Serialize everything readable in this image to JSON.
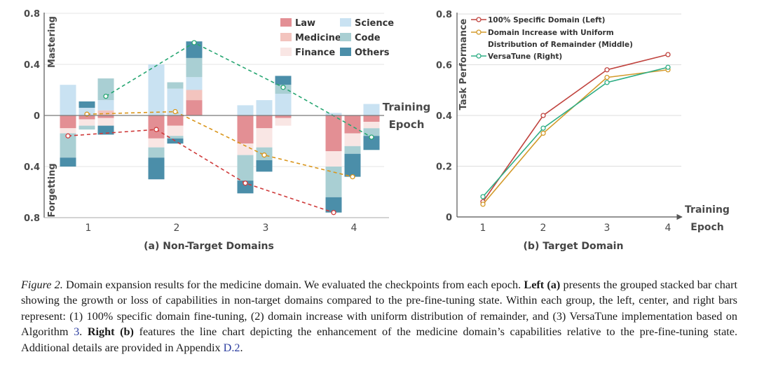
{
  "left_chart": {
    "y_ticks": [
      "0.8",
      "0.4",
      "0",
      "0.4",
      "0.8"
    ],
    "y_label_top": "Mastering",
    "y_label_bottom": "Forgetting",
    "x_axis_label_line1": "Training",
    "x_axis_label_line2": "Epoch",
    "subcaption": "(a) Non-Target Domains"
  },
  "right_chart": {
    "y_label": "Task Performance",
    "x_axis_label_line1": "Training",
    "x_axis_label_line2": "Epoch",
    "subcaption": "(b) Target Domain"
  },
  "chart_data": [
    {
      "type": "bar",
      "stacked": true,
      "grouped": true,
      "subcaption": "(a) Non-Target Domains",
      "categories": [
        "1",
        "2",
        "3",
        "4"
      ],
      "bars_per_group": 3,
      "ylim": [
        -0.8,
        0.8
      ],
      "y_tick_labels": [
        "0.8",
        "0.4",
        "0",
        "0.4",
        "0.8"
      ],
      "ylabel_positive": "Mastering",
      "ylabel_negative": "Forgetting",
      "xlabel": "Training Epoch",
      "legend": [
        {
          "name": "Law",
          "color": "#e38f94"
        },
        {
          "name": "Science",
          "color": "#c9e2f2"
        },
        {
          "name": "Medicine",
          "color": "#f3c4be"
        },
        {
          "name": "Code",
          "color": "#a9cfd3"
        },
        {
          "name": "Finance",
          "color": "#f9e6e4"
        },
        {
          "name": "Others",
          "color": "#4b8ea9"
        }
      ],
      "legend_position": "top-right",
      "bars": [
        {
          "epoch": "1",
          "slot": 0,
          "segments": [
            {
              "domain": "Science",
              "value": 0.24
            },
            {
              "domain": "Law",
              "value": -0.1
            },
            {
              "domain": "Finance",
              "value": -0.04
            },
            {
              "domain": "Code",
              "value": -0.19
            },
            {
              "domain": "Others",
              "value": -0.07
            }
          ]
        },
        {
          "epoch": "1",
          "slot": 1,
          "segments": [
            {
              "domain": "Science",
              "value": 0.06
            },
            {
              "domain": "Others",
              "value": 0.05
            },
            {
              "domain": "Law",
              "value": -0.03
            },
            {
              "domain": "Finance",
              "value": -0.05
            },
            {
              "domain": "Code",
              "value": -0.03
            }
          ]
        },
        {
          "epoch": "1",
          "slot": 2,
          "segments": [
            {
              "domain": "Medicine",
              "value": 0.04
            },
            {
              "domain": "Science",
              "value": 0.08
            },
            {
              "domain": "Code",
              "value": 0.17
            },
            {
              "domain": "Law",
              "value": -0.02
            },
            {
              "domain": "Finance",
              "value": -0.06
            },
            {
              "domain": "Others",
              "value": -0.07
            }
          ]
        },
        {
          "epoch": "2",
          "slot": 0,
          "segments": [
            {
              "domain": "Science",
              "value": 0.4
            },
            {
              "domain": "Law",
              "value": -0.18
            },
            {
              "domain": "Finance",
              "value": -0.07
            },
            {
              "domain": "Code",
              "value": -0.08
            },
            {
              "domain": "Others",
              "value": -0.17
            }
          ]
        },
        {
          "epoch": "2",
          "slot": 1,
          "segments": [
            {
              "domain": "Science",
              "value": 0.21
            },
            {
              "domain": "Code",
              "value": 0.05
            },
            {
              "domain": "Law",
              "value": -0.08
            },
            {
              "domain": "Finance",
              "value": -0.08
            },
            {
              "domain": "Code",
              "value": -0.02
            },
            {
              "domain": "Others",
              "value": -0.04
            }
          ]
        },
        {
          "epoch": "2",
          "slot": 2,
          "segments": [
            {
              "domain": "Law",
              "value": 0.12
            },
            {
              "domain": "Medicine",
              "value": 0.08
            },
            {
              "domain": "Science",
              "value": 0.1
            },
            {
              "domain": "Code",
              "value": 0.15
            },
            {
              "domain": "Others",
              "value": 0.13
            }
          ]
        },
        {
          "epoch": "3",
          "slot": 0,
          "segments": [
            {
              "domain": "Science",
              "value": 0.08
            },
            {
              "domain": "Law",
              "value": -0.22
            },
            {
              "domain": "Finance",
              "value": -0.09
            },
            {
              "domain": "Code",
              "value": -0.2
            },
            {
              "domain": "Others",
              "value": -0.1
            }
          ]
        },
        {
          "epoch": "3",
          "slot": 1,
          "segments": [
            {
              "domain": "Science",
              "value": 0.12
            },
            {
              "domain": "Law",
              "value": -0.1
            },
            {
              "domain": "Finance",
              "value": -0.15
            },
            {
              "domain": "Code",
              "value": -0.1
            },
            {
              "domain": "Others",
              "value": -0.09
            }
          ]
        },
        {
          "epoch": "3",
          "slot": 2,
          "segments": [
            {
              "domain": "Science",
              "value": 0.17
            },
            {
              "domain": "Code",
              "value": 0.07
            },
            {
              "domain": "Others",
              "value": 0.07
            },
            {
              "domain": "Law",
              "value": -0.02
            },
            {
              "domain": "Finance",
              "value": -0.06
            }
          ]
        },
        {
          "epoch": "4",
          "slot": 0,
          "segments": [
            {
              "domain": "Science",
              "value": 0.02
            },
            {
              "domain": "Law",
              "value": -0.28
            },
            {
              "domain": "Finance",
              "value": -0.12
            },
            {
              "domain": "Code",
              "value": -0.24
            },
            {
              "domain": "Others",
              "value": -0.12
            }
          ]
        },
        {
          "epoch": "4",
          "slot": 1,
          "segments": [
            {
              "domain": "Law",
              "value": -0.14
            },
            {
              "domain": "Finance",
              "value": -0.1
            },
            {
              "domain": "Code",
              "value": -0.06
            },
            {
              "domain": "Others",
              "value": -0.18
            }
          ]
        },
        {
          "epoch": "4",
          "slot": 2,
          "segments": [
            {
              "domain": "Science",
              "value": 0.09
            },
            {
              "domain": "Law",
              "value": -0.05
            },
            {
              "domain": "Finance",
              "value": -0.05
            },
            {
              "domain": "Code",
              "value": -0.06
            },
            {
              "domain": "Others",
              "value": -0.11
            }
          ]
        }
      ],
      "lines": [
        {
          "slot": 0,
          "color": "#cf3b3b",
          "values": [
            -0.16,
            -0.11,
            -0.53,
            -0.76
          ]
        },
        {
          "slot": 1,
          "color": "#d9951b",
          "values": [
            0.01,
            0.03,
            -0.31,
            -0.48
          ]
        },
        {
          "slot": 2,
          "color": "#27a672",
          "values": [
            0.15,
            0.57,
            0.22,
            -0.17
          ]
        }
      ]
    },
    {
      "type": "line",
      "subcaption": "(b) Target Domain",
      "x": [
        "1",
        "2",
        "3",
        "4"
      ],
      "ylim": [
        0,
        0.8
      ],
      "y_ticks": [
        "0",
        "0.2",
        "0.4",
        "0.6",
        "0.8"
      ],
      "ylabel": "Task Performance",
      "xlabel": "Training Epoch",
      "grid": true,
      "legend_position": "top-left",
      "series": [
        {
          "name": "100% Specific Domain (Left)",
          "color": "#c0443f",
          "values": [
            0.06,
            0.4,
            0.58,
            0.64
          ]
        },
        {
          "name": "Domain Increase with Uniform Distribution of Remainder (Middle)",
          "color": "#d39a2a",
          "values": [
            0.05,
            0.33,
            0.55,
            0.58
          ]
        },
        {
          "name": "VersaTune (Right)",
          "color": "#2fae85",
          "values": [
            0.08,
            0.35,
            0.53,
            0.59
          ]
        }
      ]
    }
  ],
  "caption": {
    "label": "Figure 2.",
    "text1": " Domain expansion results for the medicine domain. We evaluated the checkpoints from each epoch. ",
    "bold1": "Left (a)",
    "text2": " presents the grouped stacked bar chart showing the growth or loss of capabilities in non-target domains compared to the pre-fine-tuning state. Within each group, the left, center, and right bars represent: (1) 100% specific domain fine-tuning, (2) domain increase with uniform distribution of remainder, and (3) VersaTune implementation based on Algorithm ",
    "link1": "3",
    "text3": ". ",
    "bold2": "Right (b)",
    "text4": " features the line chart depicting the enhancement of the medicine domain’s capabilities relative to the pre-fine-tuning state. Additional details are provided in Appendix ",
    "link2": "D.2",
    "text5": "."
  }
}
